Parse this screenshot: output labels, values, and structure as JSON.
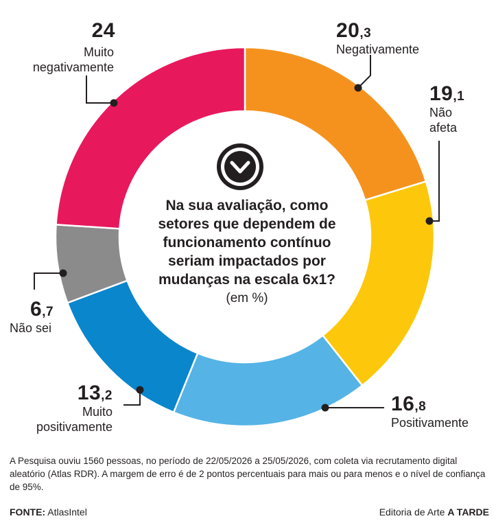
{
  "chart_data": {
    "type": "pie",
    "title": "Na sua avaliação, como setores que dependem de funcionamento contínuo seriam impactados por mudanças na escala 6x1?",
    "unit": "(em %)",
    "slices": [
      {
        "name": "Negativamente",
        "value": 20.3,
        "int": "20",
        "dec": ",3",
        "color": "#f5921e"
      },
      {
        "name": "Não afeta",
        "value": 19.1,
        "int": "19",
        "dec": ",1",
        "color": "#fdc80b"
      },
      {
        "name": "Positivamente",
        "value": 16.8,
        "int": "16",
        "dec": ",8",
        "color": "#55b3e6"
      },
      {
        "name": "Muito positivamente",
        "value": 13.2,
        "int": "13",
        "dec": ",2",
        "color": "#0a86cc"
      },
      {
        "name": "Não sei",
        "value": 6.7,
        "int": "6",
        "dec": ",7",
        "color": "#8b8b8b"
      },
      {
        "name": "Muito negativamente",
        "value": 24,
        "int": "24",
        "dec": "",
        "color": "#e8185c"
      }
    ]
  },
  "labels": [
    {
      "num": "24",
      "dec": "",
      "text": "Muito\nnegativamente"
    },
    {
      "num": "20",
      "dec": ",3",
      "text": "Negativamente"
    },
    {
      "num": "19",
      "dec": ",1",
      "text": "Não\nafeta"
    },
    {
      "num": "16",
      "dec": ",8",
      "text": "Positivamente"
    },
    {
      "num": "13",
      "dec": ",2",
      "text": "Muito\npositivamente"
    },
    {
      "num": "6",
      "dec": ",7",
      "text": "Não sei"
    }
  ],
  "center": {
    "question": "Na sua avaliação, como\nsetores que dependem de\nfuncionamento contínuo\nseriam impactados por\nmudanças na escala 6x1?",
    "unit": "(em %)"
  },
  "footer": {
    "note": "A Pesquisa ouviu 1560 pessoas, no período de 22/05/2026 a 25/05/2026, com coleta via recrutamento digital aleatório (Atlas RDR). A margem de erro é de 2 pontos percentuais para mais ou para menos e o nível de confiança de 95%.",
    "source_label": "FONTE:",
    "source_value": "AtlasIntel",
    "credit_prefix": "Editoria de Arte",
    "credit_brand": "A TARDE"
  },
  "colors": {
    "text": "#231f20",
    "icon_circle": "#231f20"
  },
  "icons": {
    "center_icon": "chevron-down-icon"
  }
}
